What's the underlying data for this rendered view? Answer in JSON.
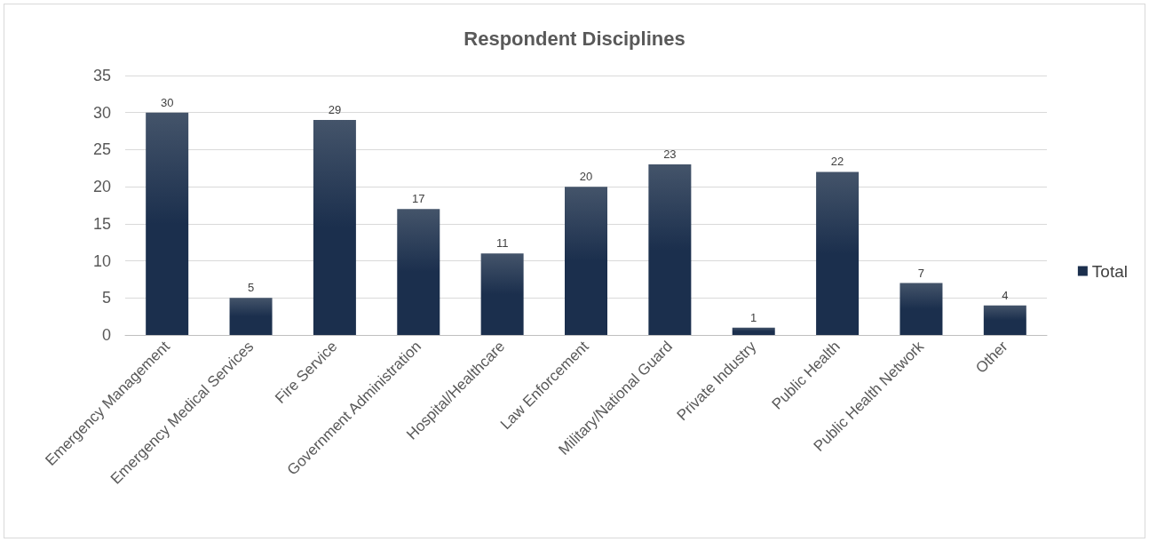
{
  "chart_data": {
    "type": "bar",
    "title": "Respondent Disciplines",
    "categories": [
      "Emergency Management",
      "Emergency Medical Services",
      "Fire Service",
      "Government Administration",
      "Hospital/Healthcare",
      "Law Enforcement",
      "Military/National Guard",
      "Private Industry",
      "Public Health",
      "Public Health Network",
      "Other"
    ],
    "series": [
      {
        "name": "Total",
        "color": "#1b2f4d",
        "values": [
          30,
          5,
          29,
          17,
          11,
          20,
          23,
          1,
          22,
          7,
          4
        ]
      }
    ],
    "ylim": [
      0,
      35
    ],
    "yticks": [
      0,
      5,
      10,
      15,
      20,
      25,
      30,
      35
    ],
    "grid": "y",
    "legend": "right",
    "data_labels": true
  }
}
